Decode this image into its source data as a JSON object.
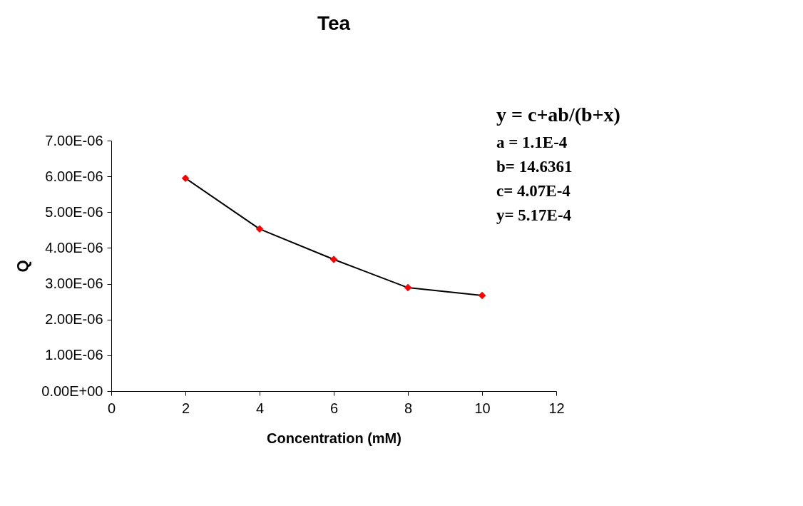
{
  "chart_data": {
    "type": "line",
    "title": "Tea",
    "xlabel": "Concentration (mM)",
    "ylabel": "Q",
    "x": [
      2,
      4,
      6,
      8,
      10
    ],
    "series": [
      {
        "color": "#ff0000",
        "values": [
          5.95e-06,
          4.53e-06,
          3.68e-06,
          2.89e-06,
          2.67e-06
        ]
      }
    ],
    "xlim": [
      0,
      12
    ],
    "xticks": [
      0,
      2,
      4,
      6,
      8,
      10,
      12
    ],
    "ylim": [
      0,
      7e-06
    ],
    "yticks": [
      {
        "value": 0,
        "label": "0.00E+00"
      },
      {
        "value": 1e-06,
        "label": "1.00E-06"
      },
      {
        "value": 2e-06,
        "label": "2.00E-06"
      },
      {
        "value": 3e-06,
        "label": "3.00E-06"
      },
      {
        "value": 4e-06,
        "label": "4.00E-06"
      },
      {
        "value": 5e-06,
        "label": "5.00E-06"
      },
      {
        "value": 6e-06,
        "label": "6.00E-06"
      },
      {
        "value": 7e-06,
        "label": "7.00E-06"
      }
    ],
    "marker": "diamond",
    "line_style": "solid",
    "grid": false,
    "legend": false,
    "annotations": [
      "y = c+ab/(b+x)",
      "a = 1.1E-4",
      "b=  14.6361",
      "c=  4.07E-4",
      "y=  5.17E-4"
    ]
  }
}
